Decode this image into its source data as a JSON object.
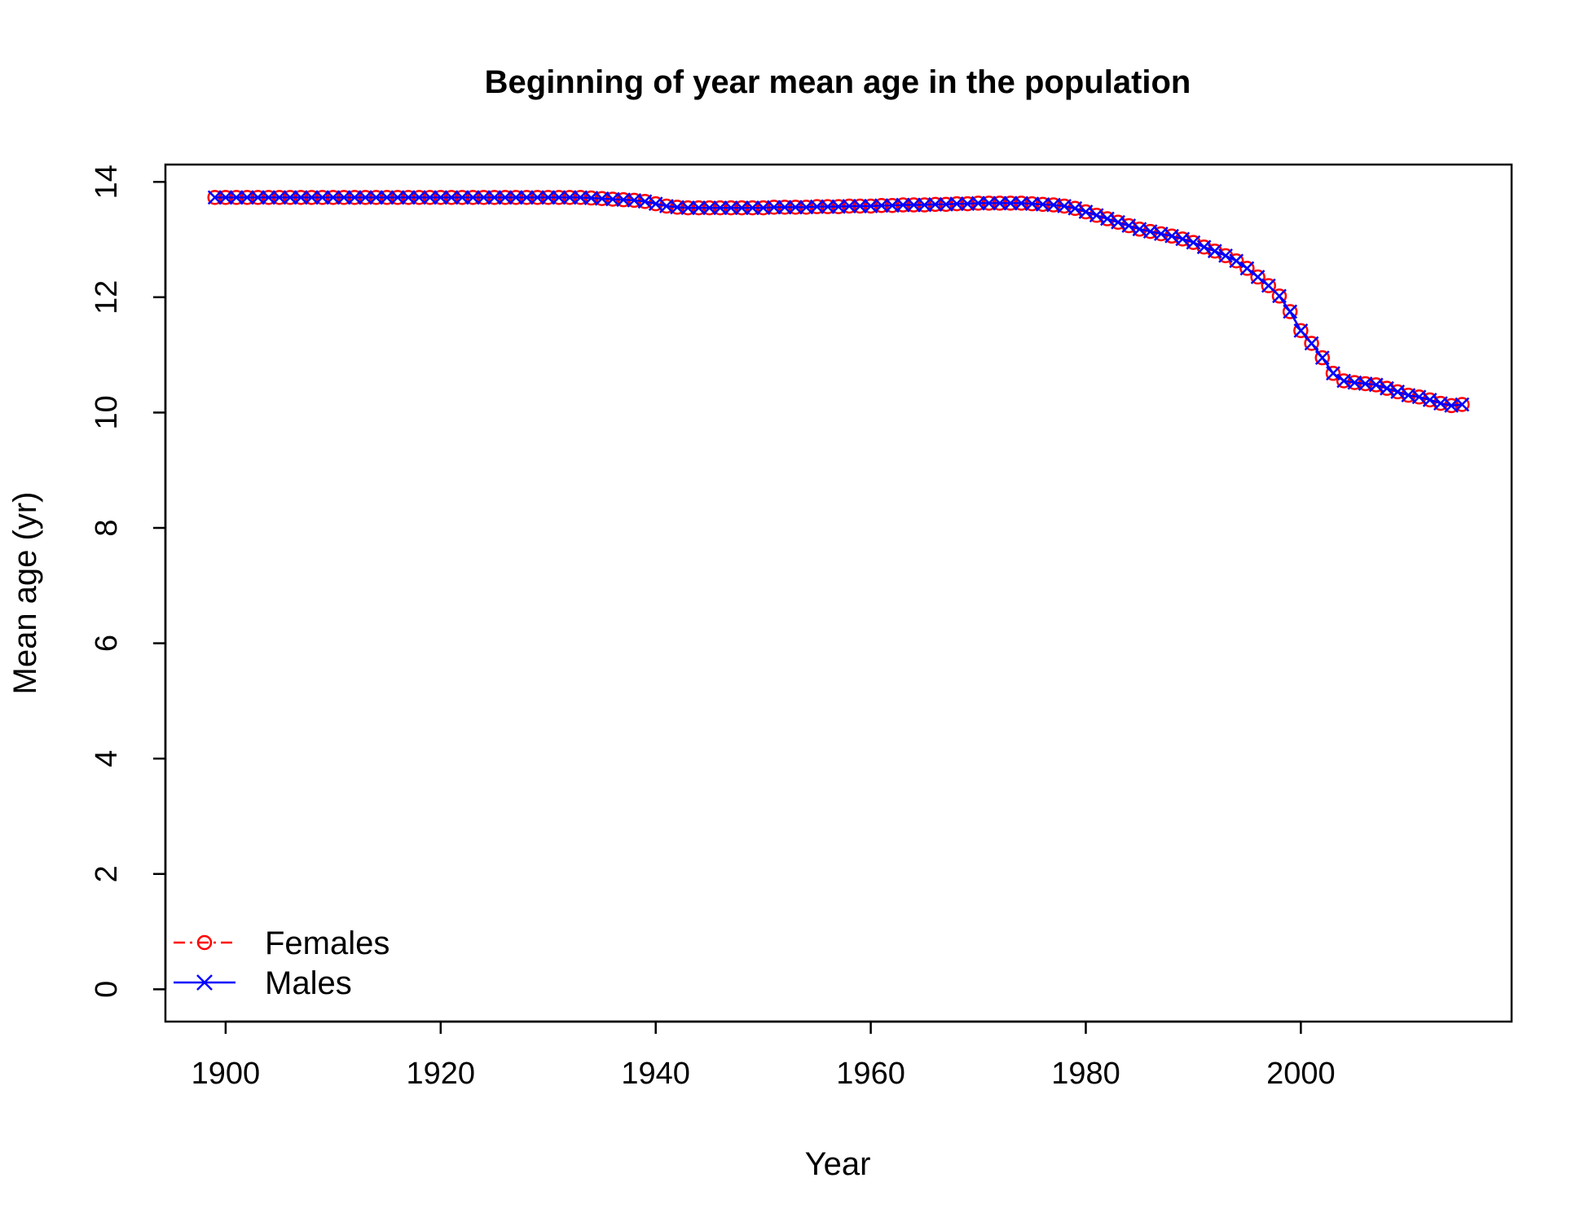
{
  "chart_data": {
    "type": "line",
    "title": "Beginning of year mean age in the population",
    "xlabel": "Year",
    "ylabel": "Mean age (yr)",
    "xlim": [
      1894.4,
      2019.6
    ],
    "ylim": [
      -0.56,
      14.3
    ],
    "xticks": [
      1900,
      1920,
      1940,
      1960,
      1980,
      2000
    ],
    "yticks": [
      0,
      2,
      4,
      6,
      8,
      10,
      12,
      14
    ],
    "grid": false,
    "legend_position": "bottom-left",
    "x": [
      1899,
      1900,
      1901,
      1902,
      1903,
      1904,
      1905,
      1906,
      1907,
      1908,
      1909,
      1910,
      1911,
      1912,
      1913,
      1914,
      1915,
      1916,
      1917,
      1918,
      1919,
      1920,
      1921,
      1922,
      1923,
      1924,
      1925,
      1926,
      1927,
      1928,
      1929,
      1930,
      1931,
      1932,
      1933,
      1934,
      1935,
      1936,
      1937,
      1938,
      1939,
      1940,
      1941,
      1942,
      1943,
      1944,
      1945,
      1946,
      1947,
      1948,
      1949,
      1950,
      1951,
      1952,
      1953,
      1954,
      1955,
      1956,
      1957,
      1958,
      1959,
      1960,
      1961,
      1962,
      1963,
      1964,
      1965,
      1966,
      1967,
      1968,
      1969,
      1970,
      1971,
      1972,
      1973,
      1974,
      1975,
      1976,
      1977,
      1978,
      1979,
      1980,
      1981,
      1982,
      1983,
      1984,
      1985,
      1986,
      1987,
      1988,
      1989,
      1990,
      1991,
      1992,
      1993,
      1994,
      1995,
      1996,
      1997,
      1998,
      1999,
      2000,
      2001,
      2002,
      2003,
      2004,
      2005,
      2006,
      2007,
      2008,
      2009,
      2010,
      2011,
      2012,
      2013,
      2014,
      2015
    ],
    "series": [
      {
        "name": "Females",
        "color": "#ff0000",
        "line_style": "dashdot",
        "marker": "circle",
        "values": [
          13.73,
          13.73,
          13.73,
          13.73,
          13.73,
          13.73,
          13.73,
          13.73,
          13.73,
          13.73,
          13.73,
          13.73,
          13.73,
          13.73,
          13.73,
          13.73,
          13.73,
          13.73,
          13.73,
          13.73,
          13.73,
          13.73,
          13.73,
          13.73,
          13.73,
          13.73,
          13.73,
          13.73,
          13.73,
          13.73,
          13.73,
          13.73,
          13.73,
          13.73,
          13.73,
          13.72,
          13.71,
          13.7,
          13.69,
          13.68,
          13.66,
          13.62,
          13.58,
          13.56,
          13.55,
          13.55,
          13.55,
          13.55,
          13.55,
          13.55,
          13.55,
          13.55,
          13.56,
          13.56,
          13.56,
          13.56,
          13.57,
          13.57,
          13.57,
          13.58,
          13.58,
          13.58,
          13.59,
          13.59,
          13.6,
          13.6,
          13.6,
          13.61,
          13.61,
          13.62,
          13.62,
          13.63,
          13.63,
          13.63,
          13.63,
          13.63,
          13.62,
          13.61,
          13.6,
          13.58,
          13.54,
          13.48,
          13.42,
          13.36,
          13.3,
          13.24,
          13.18,
          13.14,
          13.1,
          13.06,
          13.01,
          12.95,
          12.87,
          12.8,
          12.72,
          12.63,
          12.5,
          12.35,
          12.2,
          12.02,
          11.75,
          11.42,
          11.2,
          10.95,
          10.68,
          10.55,
          10.52,
          10.5,
          10.48,
          10.42,
          10.36,
          10.3,
          10.27,
          10.22,
          10.16,
          10.12,
          10.14
        ]
      },
      {
        "name": "Males",
        "color": "#0000ff",
        "line_style": "solid",
        "marker": "x",
        "values": [
          13.73,
          13.73,
          13.73,
          13.73,
          13.73,
          13.73,
          13.73,
          13.73,
          13.73,
          13.73,
          13.73,
          13.73,
          13.73,
          13.73,
          13.73,
          13.73,
          13.73,
          13.73,
          13.73,
          13.73,
          13.73,
          13.73,
          13.73,
          13.73,
          13.73,
          13.73,
          13.73,
          13.73,
          13.73,
          13.73,
          13.73,
          13.73,
          13.73,
          13.73,
          13.73,
          13.72,
          13.71,
          13.7,
          13.69,
          13.68,
          13.66,
          13.62,
          13.58,
          13.56,
          13.55,
          13.55,
          13.55,
          13.55,
          13.55,
          13.55,
          13.55,
          13.55,
          13.56,
          13.56,
          13.56,
          13.56,
          13.57,
          13.57,
          13.57,
          13.58,
          13.58,
          13.58,
          13.59,
          13.59,
          13.6,
          13.6,
          13.6,
          13.61,
          13.61,
          13.62,
          13.62,
          13.63,
          13.63,
          13.63,
          13.63,
          13.63,
          13.62,
          13.61,
          13.6,
          13.58,
          13.54,
          13.48,
          13.42,
          13.36,
          13.3,
          13.24,
          13.18,
          13.14,
          13.1,
          13.06,
          13.01,
          12.95,
          12.87,
          12.8,
          12.72,
          12.63,
          12.5,
          12.35,
          12.2,
          12.02,
          11.75,
          11.42,
          11.2,
          10.95,
          10.68,
          10.55,
          10.52,
          10.5,
          10.48,
          10.42,
          10.36,
          10.3,
          10.27,
          10.22,
          10.16,
          10.12,
          10.14
        ]
      }
    ]
  }
}
